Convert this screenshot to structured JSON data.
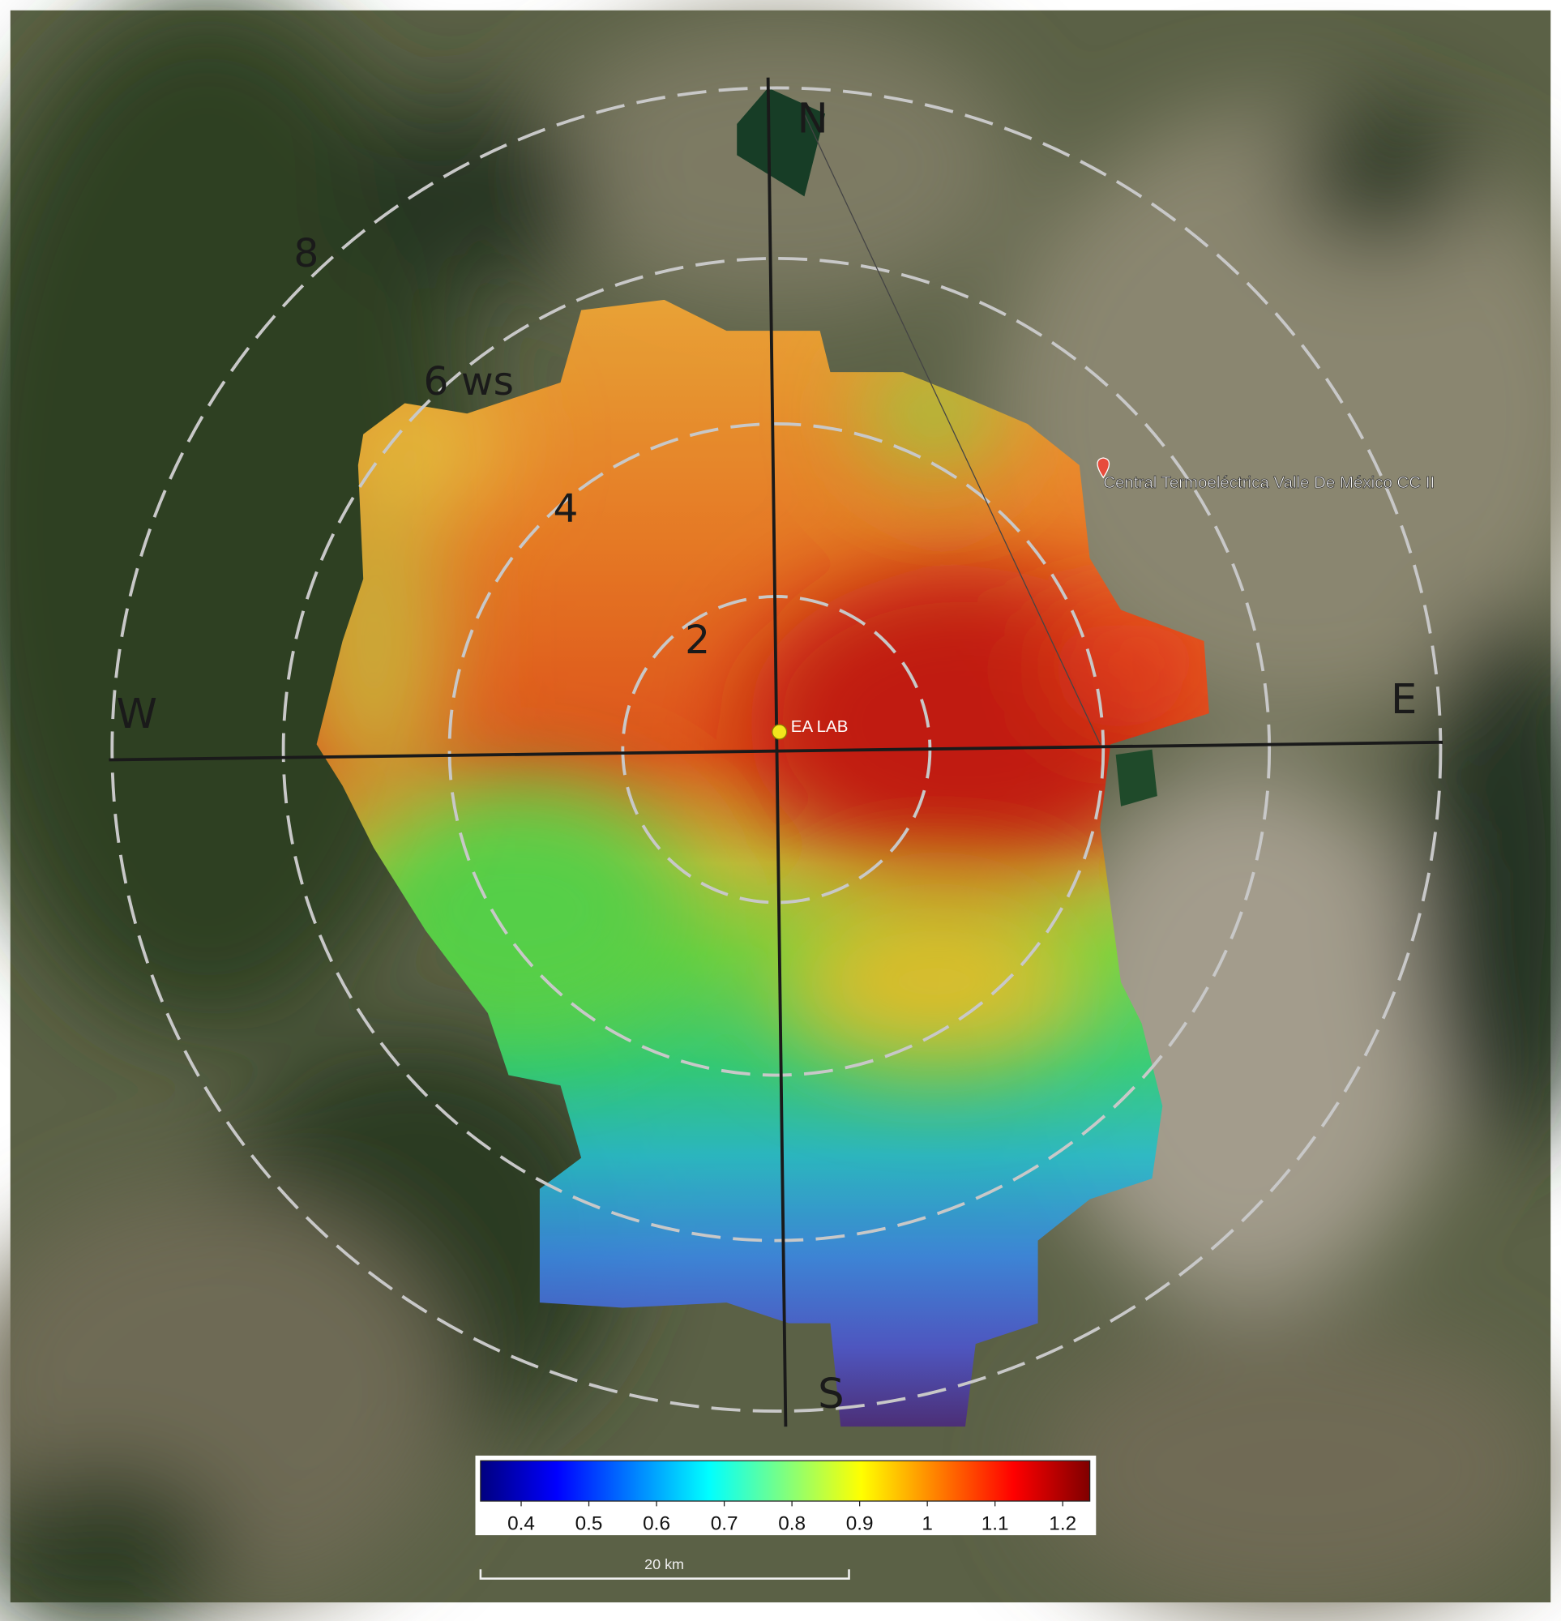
{
  "compass": {
    "north": "N",
    "east": "E",
    "south": "S",
    "west": "W"
  },
  "rings": [
    "2",
    "4",
    "6 ws",
    "8"
  ],
  "markers": [
    {
      "label": "EA LAB"
    },
    {
      "label": "Central Termoeléctrica Valle De México CC II"
    }
  ],
  "colorbar": {
    "lim": [
      0.34,
      1.24
    ],
    "ticks": [
      0.4,
      0.5,
      0.6,
      0.7,
      0.8,
      0.9,
      1,
      1.1,
      1.2
    ],
    "colors": [
      "#00007f",
      "#0000ff",
      "#007fff",
      "#00ffff",
      "#7fff7f",
      "#ffff00",
      "#ff7f00",
      "#ff0000",
      "#7f0000"
    ]
  },
  "scale_bar": {
    "label": "20 km"
  }
}
